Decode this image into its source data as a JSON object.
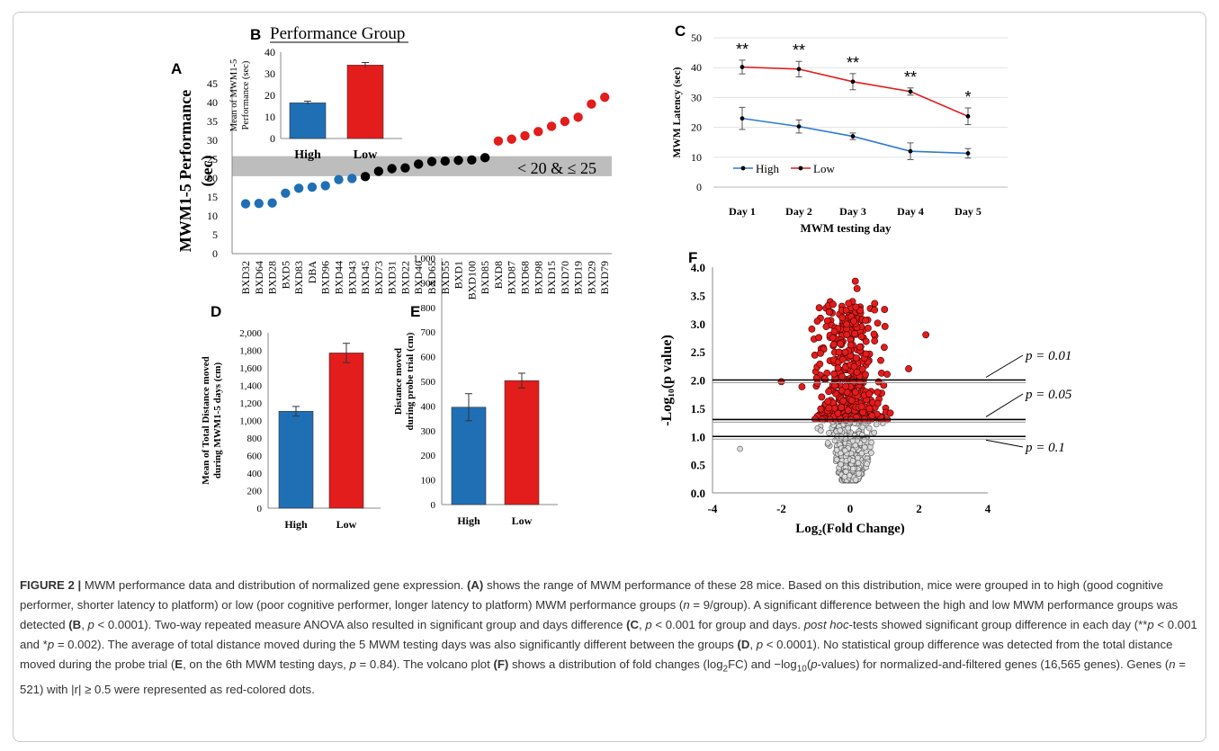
{
  "colors": {
    "high": "#1f6fb5",
    "low": "#e31c1c",
    "line_high": "#2e7bd1",
    "line_low": "#e31c1c",
    "band": "#bdbdbd",
    "dot_gray": "#d9d9d9"
  },
  "panels": [
    {
      "id": "A",
      "label": "A",
      "type": "scatter",
      "ylabel_line1": "MWM1-5 Performance",
      "ylabel_line2": "(sec)",
      "ylim": [
        0,
        45
      ],
      "yticks": [
        "0",
        "5",
        "10",
        "15",
        "20",
        "25",
        "30",
        "35",
        "40",
        "45"
      ],
      "band_label": "< 20 & ≤ 25",
      "band_range": [
        20,
        25
      ],
      "strains": [
        "BXD32",
        "BXD64",
        "BXD28",
        "BXD5",
        "BXD83",
        "DBA",
        "BXD96",
        "BXD44",
        "BXD43",
        "BXD45",
        "BXD73",
        "BXD31",
        "BXD22",
        "BXD40",
        "BXD65",
        "BXD55",
        "BXD1",
        "BXD100",
        "BXD85",
        "BXD8",
        "BXD87",
        "BXD68",
        "BXD98",
        "BXD15",
        "BXD70",
        "BXD19",
        "BXD29",
        "BXD79"
      ],
      "values": [
        13.2,
        13.3,
        13.4,
        16,
        17.3,
        17.6,
        18,
        19.6,
        19.9,
        20.4,
        21.8,
        22.5,
        22.7,
        23.7,
        24.4,
        24.5,
        24.7,
        24.8,
        25.4,
        29.8,
        30.3,
        31.2,
        32.3,
        33.7,
        35,
        36.1,
        39.6,
        41.4
      ],
      "groups": [
        "high",
        "high",
        "high",
        "high",
        "high",
        "high",
        "high",
        "high",
        "high",
        "mid",
        "mid",
        "mid",
        "mid",
        "mid",
        "mid",
        "mid",
        "mid",
        "mid",
        "mid",
        "low",
        "low",
        "low",
        "low",
        "low",
        "low",
        "low",
        "low",
        "low"
      ]
    },
    {
      "id": "B",
      "label": "B",
      "title": "Performance Group",
      "type": "bar",
      "ylabel_line1": "Mean of MWM1-5",
      "ylabel_line2": "Performance (sec)",
      "ylim": [
        0,
        40
      ],
      "yticks": [
        "0",
        "10",
        "20",
        "30",
        "40"
      ],
      "categories": [
        "High",
        "Low"
      ],
      "values": [
        16.5,
        34
      ],
      "errors": [
        0.8,
        1.2
      ]
    },
    {
      "id": "C",
      "label": "C",
      "type": "line",
      "ylabel": "MWM Latency (sec)",
      "xlabel": "MWM testing day",
      "ylim": [
        0,
        50
      ],
      "yticks": [
        "0",
        "10",
        "20",
        "30",
        "40",
        "50"
      ],
      "categories": [
        "Day 1",
        "Day 2",
        "Day 3",
        "Day 4",
        "Day 5"
      ],
      "series": [
        {
          "name": "High",
          "values": [
            23,
            20.3,
            17,
            12,
            11.3
          ],
          "errors": [
            3.7,
            2.2,
            1.1,
            2.8,
            1.6
          ]
        },
        {
          "name": "Low",
          "values": [
            40.2,
            39.5,
            35.3,
            32,
            23.7
          ],
          "errors": [
            2.3,
            2.6,
            2.7,
            1.2,
            2.8
          ]
        }
      ],
      "significance": [
        "**",
        "**",
        "**",
        "**",
        "*"
      ]
    },
    {
      "id": "D",
      "label": "D",
      "type": "bar",
      "ylabel_line1": "Mean of Total Distance moved",
      "ylabel_line2": "during MWM1-5 days (cm)",
      "ylim": [
        0,
        2000
      ],
      "yticks": [
        "0",
        "200",
        "400",
        "600",
        "800",
        "1,000",
        "1,200",
        "1,400",
        "1,600",
        "1,800",
        "2,000"
      ],
      "categories": [
        "High",
        "Low"
      ],
      "values": [
        1105,
        1770
      ],
      "errors": [
        55,
        110
      ]
    },
    {
      "id": "E",
      "label": "E",
      "type": "bar",
      "ylabel_line1": "Distance moved",
      "ylabel_line2": "during probe trial (cm)",
      "ylim": [
        0,
        1000
      ],
      "yticks": [
        "0",
        "100",
        "200",
        "300",
        "400",
        "500",
        "600",
        "700",
        "800",
        "900",
        "1,000"
      ],
      "categories": [
        "High",
        "Low"
      ],
      "values": [
        395,
        503
      ],
      "errors": [
        55,
        30
      ]
    },
    {
      "id": "F",
      "label": "F",
      "type": "scatter",
      "ylabel": "-Log₁₀(p value)",
      "xlabel": "Log₂(Fold Change)",
      "xlim": [
        -4,
        4
      ],
      "ylim": [
        0,
        4
      ],
      "xticks": [
        "-4",
        "-2",
        "0",
        "2",
        "4"
      ],
      "yticks": [
        "0.0",
        "0.5",
        "1.0",
        "1.5",
        "2.0",
        "2.5",
        "3.0",
        "3.5",
        "4.0"
      ],
      "thresholds": [
        {
          "label": "p = 0.01",
          "value": 2.0
        },
        {
          "label": "p = 0.05",
          "value": 1.3
        },
        {
          "label": "p = 0.1",
          "value": 1.0
        }
      ]
    }
  ],
  "caption": {
    "figure_label": "FIGURE 2 |",
    "segments": [
      {
        "text": " MWM performance data and distribution of normalized gene expression. "
      },
      {
        "text": "(A)",
        "bold": true
      },
      {
        "text": " shows the range of MWM performance of these 28 mice. Based on this distribution, mice were grouped in to high (good cognitive performer, shorter latency to platform) or low (poor cognitive performer, longer latency to platform) MWM performance groups ("
      },
      {
        "text": "n",
        "italic": true
      },
      {
        "text": " = 9/group). A significant difference between the high and low MWM performance groups was detected "
      },
      {
        "text": "(B",
        "bold": true
      },
      {
        "text": ", "
      },
      {
        "text": "p",
        "italic": true
      },
      {
        "text": " < 0.0001). Two-way repeated measure ANOVA also resulted in significant group and days difference "
      },
      {
        "text": "(C",
        "bold": true
      },
      {
        "text": ", "
      },
      {
        "text": "p",
        "italic": true
      },
      {
        "text": " < 0.001 for group and days. "
      },
      {
        "text": "post hoc",
        "italic": true
      },
      {
        "text": "-tests showed significant group difference in each day (**"
      },
      {
        "text": "p",
        "italic": true
      },
      {
        "text": " < 0.001 and *"
      },
      {
        "text": "p",
        "italic": true
      },
      {
        "text": " = 0.002). The average of total distance moved during the 5 MWM testing days was also significantly different between the groups "
      },
      {
        "text": "(D",
        "bold": true
      },
      {
        "text": ", "
      },
      {
        "text": "p",
        "italic": true
      },
      {
        "text": " < 0.0001). No statistical group difference was detected from the total distance moved during the probe trial ("
      },
      {
        "text": "E",
        "bold": true
      },
      {
        "text": ", on the 6th MWM testing days, "
      },
      {
        "text": "p",
        "italic": true
      },
      {
        "text": " = 0.84). The volcano plot "
      },
      {
        "text": "(F)",
        "bold": true
      },
      {
        "text": " shows a distribution of fold changes (log"
      },
      {
        "text": "2",
        "sub": true
      },
      {
        "text": "FC) and −log"
      },
      {
        "text": "10",
        "sub": true
      },
      {
        "text": "("
      },
      {
        "text": "p",
        "italic": true
      },
      {
        "text": "-values) for normalized-and-filtered genes (16,565 genes). Genes ("
      },
      {
        "text": "n",
        "italic": true
      },
      {
        "text": " = 521) with |r| ≥ 0.5 were represented as red-colored dots."
      }
    ]
  }
}
